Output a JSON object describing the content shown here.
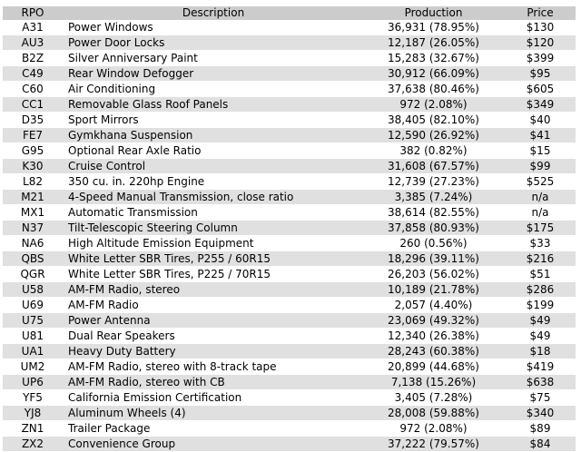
{
  "table": {
    "headers": {
      "rpo": "RPO",
      "description": "Description",
      "production": "Production",
      "price": "Price"
    },
    "rows": [
      {
        "rpo": "A31",
        "description": "Power Windows",
        "production": "36,931 (78.95%)",
        "price": "$130"
      },
      {
        "rpo": "AU3",
        "description": "Power Door Locks",
        "production": "12,187 (26.05%)",
        "price": "$120"
      },
      {
        "rpo": "B2Z",
        "description": "Silver Anniversary Paint",
        "production": "15,283 (32.67%)",
        "price": "$399"
      },
      {
        "rpo": "C49",
        "description": "Rear Window Defogger",
        "production": "30,912 (66.09%)",
        "price": "$95"
      },
      {
        "rpo": "C60",
        "description": "Air Conditioning",
        "production": "37,638 (80.46%)",
        "price": "$605"
      },
      {
        "rpo": "CC1",
        "description": "Removable Glass Roof Panels",
        "production": "972 (2.08%)",
        "price": "$349"
      },
      {
        "rpo": "D35",
        "description": "Sport Mirrors",
        "production": "38,405 (82.10%)",
        "price": "$40"
      },
      {
        "rpo": "FE7",
        "description": "Gymkhana Suspension",
        "production": "12,590 (26.92%)",
        "price": "$41"
      },
      {
        "rpo": "G95",
        "description": "Optional Rear Axle Ratio",
        "production": "382 (0.82%)",
        "price": "$15"
      },
      {
        "rpo": "K30",
        "description": "Cruise Control",
        "production": "31,608 (67.57%)",
        "price": "$99"
      },
      {
        "rpo": "L82",
        "description": "350 cu. in. 220hp Engine",
        "production": "12,739 (27.23%)",
        "price": "$525"
      },
      {
        "rpo": "M21",
        "description": "4-Speed Manual Transmission, close ratio",
        "production": "3,385 (7.24%)",
        "price": "n/a"
      },
      {
        "rpo": "MX1",
        "description": "Automatic Transmission",
        "production": "38,614 (82.55%)",
        "price": "n/a"
      },
      {
        "rpo": "N37",
        "description": "Tilt-Telescopic Steering Column",
        "production": "37,858 (80.93%)",
        "price": "$175"
      },
      {
        "rpo": "NA6",
        "description": "High Altitude Emission Equipment",
        "production": "260 (0.56%)",
        "price": "$33"
      },
      {
        "rpo": "QBS",
        "description": "White Letter SBR Tires, P255 / 60R15",
        "production": "18,296 (39.11%)",
        "price": "$216"
      },
      {
        "rpo": "QGR",
        "description": "White Letter SBR Tires, P225 / 70R15",
        "production": "26,203 (56.02%)",
        "price": "$51"
      },
      {
        "rpo": "U58",
        "description": "AM-FM Radio, stereo",
        "production": "10,189 (21.78%)",
        "price": "$286"
      },
      {
        "rpo": "U69",
        "description": "AM-FM Radio",
        "production": "2,057 (4.40%)",
        "price": "$199"
      },
      {
        "rpo": "U75",
        "description": "Power Antenna",
        "production": "23,069 (49.32%)",
        "price": "$49"
      },
      {
        "rpo": "U81",
        "description": "Dual Rear Speakers",
        "production": "12,340 (26.38%)",
        "price": "$49"
      },
      {
        "rpo": "UA1",
        "description": "Heavy Duty Battery",
        "production": "28,243 (60.38%)",
        "price": "$18"
      },
      {
        "rpo": "UM2",
        "description": "AM-FM Radio, stereo with 8-track tape",
        "production": "20,899 (44.68%)",
        "price": "$419"
      },
      {
        "rpo": "UP6",
        "description": "AM-FM Radio, stereo with CB",
        "production": "7,138 (15.26%)",
        "price": "$638"
      },
      {
        "rpo": "YF5",
        "description": "California Emission Certification",
        "production": "3,405 (7.28%)",
        "price": "$75"
      },
      {
        "rpo": "YJ8",
        "description": "Aluminum Wheels (4)",
        "production": "28,008 (59.88%)",
        "price": "$340"
      },
      {
        "rpo": "ZN1",
        "description": "Trailer Package",
        "production": "972 (2.08%)",
        "price": "$89"
      },
      {
        "rpo": "ZX2",
        "description": "Convenience Group",
        "production": "37,222 (79.57%)",
        "price": "$84"
      }
    ]
  }
}
